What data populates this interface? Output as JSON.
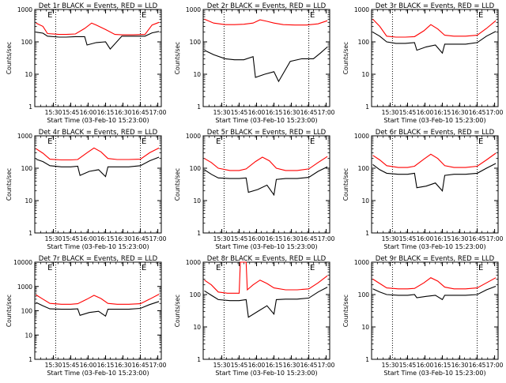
{
  "figure": {
    "xlabel": "Start Time (03-Feb-10 15:23:00)",
    "ylabel": "Counts/sec",
    "x_ticks": [
      "15:30",
      "15:45",
      "16:00",
      "16:15",
      "16:30",
      "16:45",
      "17:00"
    ],
    "colors": {
      "events": "#000000",
      "lld": "#ff0000",
      "axes": "#000000"
    }
  },
  "chart_data": [
    {
      "type": "line",
      "title": "Det 1r BLACK = Events, RED = LLD",
      "ylabel": "Counts/sec",
      "xlabel": "Start Time (03-Feb-10 15:23:00)",
      "y_scale": "log",
      "ylim": [
        1,
        1000
      ],
      "y_ticks": [
        1,
        10,
        100,
        1000
      ],
      "y_tick_labels": [
        "1",
        "10",
        "100",
        "1000"
      ],
      "xlim_minutes": [
        -9,
        100
      ],
      "x_ticks_minutes": [
        7,
        22,
        37,
        52,
        67,
        82,
        97
      ],
      "markers": [
        {
          "x": 2,
          "label": "E"
        },
        {
          "x": 83,
          "label": "E"
        }
      ],
      "vlines": [
        9,
        82
      ],
      "series": [
        {
          "name": "Events",
          "color": "#000000",
          "x": [
            -8,
            -2,
            2,
            12,
            18,
            26,
            34,
            36,
            44,
            52,
            56,
            66,
            76,
            86,
            92,
            98
          ],
          "y": [
            200,
            185,
            150,
            140,
            140,
            145,
            145,
            80,
            95,
            100,
            60,
            150,
            150,
            150,
            190,
            210
          ]
        },
        {
          "name": "LLD",
          "color": "#ff0000",
          "x": [
            -8,
            -2,
            2,
            12,
            18,
            26,
            34,
            40,
            44,
            52,
            60,
            66,
            76,
            86,
            92,
            98
          ],
          "y": [
            380,
            300,
            180,
            170,
            170,
            175,
            260,
            380,
            330,
            240,
            170,
            165,
            165,
            170,
            330,
            400
          ]
        }
      ]
    },
    {
      "type": "line",
      "title": "Det 2r BLACK = Events, RED = LLD",
      "ylabel": "Counts/sec",
      "xlabel": "Start Time (03-Feb-10 15:23:00)",
      "y_scale": "log",
      "ylim": [
        1,
        1000
      ],
      "y_ticks": [
        1,
        10,
        100,
        1000
      ],
      "y_tick_labels": [
        "1",
        "10",
        "100",
        "1000"
      ],
      "xlim_minutes": [
        -9,
        100
      ],
      "x_ticks_minutes": [
        7,
        22,
        37,
        52,
        67,
        82,
        97
      ],
      "markers": [
        {
          "x": 83,
          "label": "E"
        }
      ],
      "vlines": [
        9,
        82
      ],
      "series": [
        {
          "name": "Events",
          "color": "#000000",
          "x": [
            -8,
            0,
            10,
            18,
            26,
            34,
            36,
            44,
            52,
            56,
            66,
            76,
            86,
            92,
            98
          ],
          "y": [
            55,
            40,
            30,
            28,
            28,
            35,
            8,
            10,
            12,
            6,
            25,
            30,
            30,
            45,
            70
          ]
        },
        {
          "name": "LLD",
          "color": "#ff0000",
          "x": [
            -8,
            0,
            10,
            18,
            26,
            34,
            40,
            46,
            52,
            60,
            70,
            80,
            90,
            98
          ],
          "y": [
            500,
            380,
            340,
            340,
            350,
            380,
            480,
            430,
            380,
            340,
            330,
            330,
            360,
            450
          ]
        }
      ]
    },
    {
      "type": "line",
      "title": "Det 3r BLACK = Events, RED = LLD",
      "ylabel": "Counts/sec",
      "xlabel": "Start Time (03-Feb-10 15:23:00)",
      "y_scale": "log",
      "ylim": [
        1,
        1000
      ],
      "y_ticks": [
        1,
        10,
        100,
        1000
      ],
      "y_tick_labels": [
        "1",
        "10",
        "100",
        "1000"
      ],
      "xlim_minutes": [
        -9,
        100
      ],
      "x_ticks_minutes": [
        7,
        22,
        37,
        52,
        67,
        82,
        97
      ],
      "markers": [
        {
          "x": 83,
          "label": "E"
        }
      ],
      "vlines": [
        9,
        82
      ],
      "series": [
        {
          "name": "Events",
          "color": "#000000",
          "x": [
            -8,
            -2,
            4,
            12,
            20,
            28,
            30,
            38,
            46,
            52,
            54,
            62,
            72,
            82,
            90,
            98
          ],
          "y": [
            200,
            150,
            100,
            90,
            90,
            95,
            55,
            70,
            80,
            45,
            85,
            85,
            85,
            95,
            150,
            210
          ]
        },
        {
          "name": "LLD",
          "color": "#ff0000",
          "x": [
            -8,
            -2,
            4,
            12,
            20,
            28,
            36,
            42,
            48,
            54,
            62,
            72,
            82,
            90,
            98
          ],
          "y": [
            500,
            300,
            150,
            140,
            140,
            145,
            220,
            340,
            250,
            160,
            150,
            150,
            160,
            260,
            450
          ]
        }
      ]
    },
    {
      "type": "line",
      "title": "Det 4r BLACK = Events, RED = LLD",
      "ylabel": "Counts/sec",
      "xlabel": "Start Time (03-Feb-10 15:23:00)",
      "y_scale": "log",
      "ylim": [
        1,
        1000
      ],
      "y_ticks": [
        1,
        10,
        100,
        1000
      ],
      "y_tick_labels": [
        "1",
        "10",
        "100",
        "1000"
      ],
      "xlim_minutes": [
        -9,
        100
      ],
      "x_ticks_minutes": [
        7,
        22,
        37,
        52,
        67,
        82,
        97
      ],
      "markers": [
        {
          "x": 2,
          "label": "E"
        },
        {
          "x": 83,
          "label": "E"
        }
      ],
      "vlines": [
        9,
        82
      ],
      "series": [
        {
          "name": "Events",
          "color": "#000000",
          "x": [
            -8,
            -2,
            4,
            14,
            22,
            28,
            30,
            38,
            46,
            52,
            54,
            62,
            72,
            82,
            90,
            98
          ],
          "y": [
            190,
            160,
            120,
            110,
            110,
            115,
            60,
            80,
            90,
            55,
            110,
            110,
            110,
            120,
            170,
            220
          ]
        },
        {
          "name": "LLD",
          "color": "#ff0000",
          "x": [
            -8,
            -2,
            4,
            14,
            22,
            28,
            36,
            42,
            48,
            54,
            62,
            72,
            82,
            90,
            98
          ],
          "y": [
            400,
            290,
            190,
            180,
            180,
            185,
            300,
            420,
            320,
            200,
            185,
            185,
            190,
            300,
            420
          ]
        }
      ]
    },
    {
      "type": "line",
      "title": "Det 5r BLACK = Events, RED = LLD",
      "ylabel": "Counts/sec",
      "xlabel": "Start Time (03-Feb-10 15:23:00)",
      "y_scale": "log",
      "ylim": [
        1,
        1000
      ],
      "y_ticks": [
        1,
        10,
        100,
        1000
      ],
      "y_tick_labels": [
        "1",
        "10",
        "100",
        "1000"
      ],
      "xlim_minutes": [
        -9,
        100
      ],
      "x_ticks_minutes": [
        7,
        22,
        37,
        52,
        67,
        82,
        97
      ],
      "markers": [
        {
          "x": 2,
          "label": "E"
        },
        {
          "x": 83,
          "label": "E"
        }
      ],
      "vlines": [
        9,
        82
      ],
      "series": [
        {
          "name": "Events",
          "color": "#000000",
          "x": [
            -8,
            -2,
            4,
            14,
            22,
            28,
            30,
            38,
            46,
            52,
            54,
            62,
            72,
            82,
            90,
            98
          ],
          "y": [
            90,
            65,
            50,
            48,
            48,
            50,
            18,
            22,
            30,
            15,
            45,
            48,
            48,
            52,
            80,
            110
          ]
        },
        {
          "name": "LLD",
          "color": "#ff0000",
          "x": [
            -8,
            -2,
            4,
            14,
            22,
            28,
            36,
            42,
            48,
            54,
            62,
            72,
            82,
            90,
            98
          ],
          "y": [
            200,
            150,
            100,
            85,
            85,
            95,
            160,
            220,
            170,
            100,
            85,
            85,
            95,
            150,
            230
          ]
        }
      ]
    },
    {
      "type": "line",
      "title": "Det 6r BLACK = Events, RED = LLD",
      "ylabel": "Counts/sec",
      "xlabel": "Start Time (03-Feb-10 15:23:00)",
      "y_scale": "log",
      "ylim": [
        1,
        1000
      ],
      "y_ticks": [
        1,
        10,
        100,
        1000
      ],
      "y_tick_labels": [
        "1",
        "10",
        "100",
        "1000"
      ],
      "xlim_minutes": [
        -9,
        100
      ],
      "x_ticks_minutes": [
        7,
        22,
        37,
        52,
        67,
        82,
        97
      ],
      "markers": [
        {
          "x": 83,
          "label": "E"
        }
      ],
      "vlines": [
        9,
        82
      ],
      "series": [
        {
          "name": "Events",
          "color": "#000000",
          "x": [
            -8,
            -2,
            4,
            14,
            22,
            28,
            30,
            38,
            46,
            52,
            54,
            62,
            72,
            82,
            90,
            98
          ],
          "y": [
            130,
            90,
            70,
            65,
            65,
            70,
            25,
            28,
            35,
            20,
            60,
            65,
            65,
            70,
            100,
            140
          ]
        },
        {
          "name": "LLD",
          "color": "#ff0000",
          "x": [
            -8,
            -2,
            4,
            14,
            22,
            28,
            36,
            42,
            48,
            54,
            62,
            72,
            82,
            90,
            98
          ],
          "y": [
            250,
            180,
            120,
            105,
            105,
            115,
            190,
            270,
            200,
            120,
            105,
            105,
            115,
            180,
            290
          ]
        }
      ]
    },
    {
      "type": "line",
      "title": "Det 7r BLACK = Events, RED = LLD",
      "ylabel": "Counts/sec",
      "xlabel": "Start Time (03-Feb-10 15:23:00)",
      "y_scale": "log",
      "ylim": [
        1,
        10000
      ],
      "y_ticks": [
        1,
        10,
        100,
        1000,
        10000
      ],
      "y_tick_labels": [
        "1",
        "10",
        "100",
        "1000",
        "10000"
      ],
      "xlim_minutes": [
        -9,
        100
      ],
      "x_ticks_minutes": [
        7,
        22,
        37,
        52,
        67,
        82,
        97
      ],
      "markers": [
        {
          "x": 2,
          "label": "E"
        },
        {
          "x": 83,
          "label": "E"
        }
      ],
      "vlines": [
        9,
        82
      ],
      "series": [
        {
          "name": "Events",
          "color": "#000000",
          "x": [
            -8,
            -2,
            4,
            14,
            22,
            28,
            30,
            38,
            46,
            52,
            54,
            62,
            72,
            82,
            90,
            98
          ],
          "y": [
            220,
            160,
            120,
            115,
            115,
            120,
            65,
            85,
            95,
            60,
            115,
            115,
            115,
            125,
            180,
            240
          ]
        },
        {
          "name": "LLD",
          "color": "#ff0000",
          "x": [
            -8,
            -2,
            4,
            14,
            22,
            28,
            36,
            42,
            48,
            54,
            62,
            72,
            82,
            90,
            98
          ],
          "y": [
            450,
            300,
            200,
            185,
            185,
            195,
            300,
            430,
            320,
            200,
            185,
            185,
            195,
            300,
            480
          ]
        }
      ]
    },
    {
      "type": "line",
      "title": "Det 8r BLACK = Events, RED = LLD",
      "ylabel": "Counts/sec",
      "xlabel": "Start Time (03-Feb-10 15:23:00)",
      "y_scale": "log",
      "ylim": [
        1,
        1000
      ],
      "y_ticks": [
        1,
        10,
        100,
        1000
      ],
      "y_tick_labels": [
        "1",
        "10",
        "100",
        "1000"
      ],
      "xlim_minutes": [
        -9,
        100
      ],
      "x_ticks_minutes": [
        7,
        22,
        37,
        52,
        67,
        82,
        97
      ],
      "markers": [
        {
          "x": 2,
          "label": "E"
        },
        {
          "x": 83,
          "label": "E"
        }
      ],
      "vlines": [
        9,
        82
      ],
      "series": [
        {
          "name": "Events",
          "color": "#000000",
          "x": [
            -8,
            -2,
            4,
            14,
            22,
            28,
            30,
            38,
            46,
            52,
            54,
            62,
            72,
            82,
            90,
            98
          ],
          "y": [
            130,
            95,
            70,
            65,
            65,
            70,
            20,
            30,
            45,
            25,
            70,
            72,
            72,
            78,
            120,
            170
          ]
        },
        {
          "name": "LLD",
          "color": "#ff0000",
          "x": [
            -8,
            -2,
            4,
            12,
            22,
            23,
            28,
            29,
            34,
            40,
            46,
            52,
            62,
            72,
            82,
            90,
            98
          ],
          "y": [
            280,
            200,
            120,
            110,
            110,
            1000,
            1000,
            140,
            200,
            280,
            220,
            160,
            140,
            140,
            150,
            230,
            380
          ]
        }
      ]
    },
    {
      "type": "line",
      "title": "Det 9r BLACK = Events, RED = LLD",
      "ylabel": "Counts/sec",
      "xlabel": "Start Time (03-Feb-10 15:23:00)",
      "y_scale": "log",
      "ylim": [
        1,
        1000
      ],
      "y_ticks": [
        1,
        10,
        100,
        1000
      ],
      "y_tick_labels": [
        "1",
        "10",
        "100",
        "1000"
      ],
      "xlim_minutes": [
        -9,
        100
      ],
      "x_ticks_minutes": [
        7,
        22,
        37,
        52,
        67,
        82,
        97
      ],
      "markers": [
        {
          "x": 83,
          "label": "E"
        }
      ],
      "vlines": [
        9,
        82
      ],
      "series": [
        {
          "name": "Events",
          "color": "#000000",
          "x": [
            -8,
            -2,
            4,
            14,
            22,
            28,
            30,
            38,
            46,
            52,
            54,
            62,
            72,
            82,
            90,
            98
          ],
          "y": [
            150,
            120,
            100,
            95,
            95,
            100,
            80,
            88,
            95,
            70,
            95,
            95,
            95,
            100,
            140,
            180
          ]
        },
        {
          "name": "LLD",
          "color": "#ff0000",
          "x": [
            -8,
            -2,
            4,
            14,
            22,
            28,
            36,
            42,
            48,
            54,
            62,
            72,
            82,
            90,
            98
          ],
          "y": [
            300,
            220,
            160,
            150,
            150,
            155,
            230,
            330,
            260,
            170,
            150,
            150,
            160,
            230,
            330
          ]
        }
      ]
    }
  ]
}
